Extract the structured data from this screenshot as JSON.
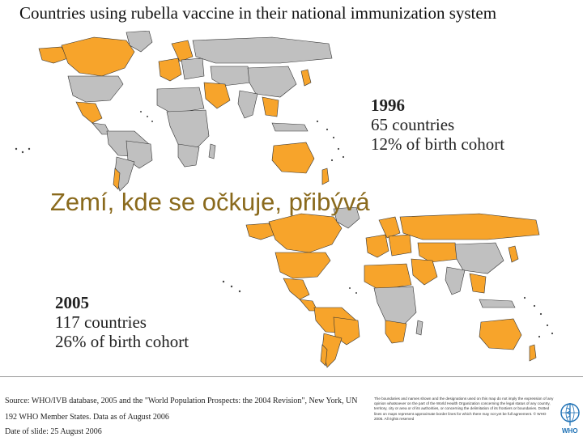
{
  "title": "Countries using rubella vaccine in their national immunization system",
  "overlay_text": "Zemí, kde se očkuje, přibývá",
  "colors": {
    "using_vaccine": "#f7a42b",
    "not_using": "#c0c0c0",
    "borders": "#333333",
    "overlay": "#8a6a1d"
  },
  "maps": [
    {
      "year": "1996",
      "countries": "65 countries",
      "coverage": "12% of birth cohort"
    },
    {
      "year": "2005",
      "countries": "117 countries",
      "coverage": "26% of birth cohort"
    }
  ],
  "footer": {
    "source": "Source: WHO/IVB database, 2005 and the \"World Population Prospects: the 2004 Revision\", New York, UN",
    "member_states": "192 WHO Member States. Data as of August 2006",
    "date_of_slide": "Date of slide: 25 August 2006",
    "disclaimer": "The boundaries and names shown and the designations used on this map do not imply the expression of any opinion whatsoever on the part of the World Health Organization concerning the legal status of any country, territory, city or area or of its authorities, or concerning the delimitation of its frontiers or boundaries. Dotted lines on maps represent approximate border lines for which there may not yet be full agreement. © WHO 2006. All rights reserved",
    "logo_text": "WHO"
  }
}
